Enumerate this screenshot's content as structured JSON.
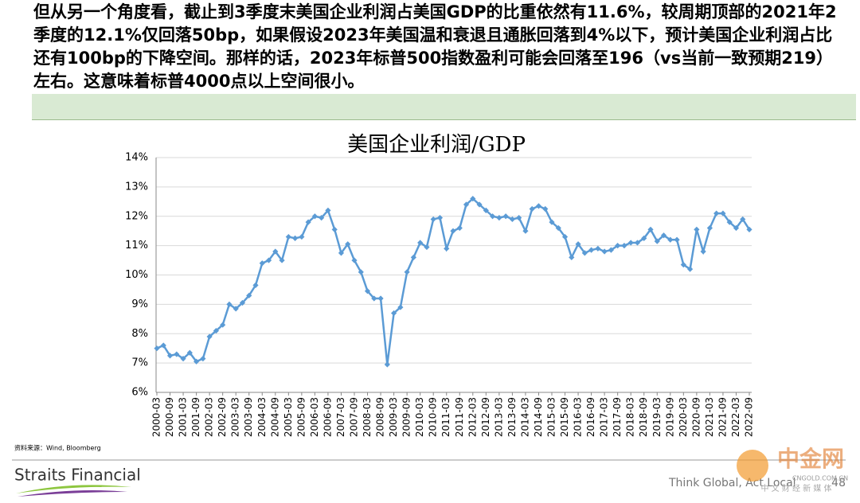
{
  "header": {
    "text": "但从另一个角度看，截止到3季度末美国企业利润占美国GDP的比重依然有11.6%，较周期顶部的2021年2季度的12.1%仅回落50bp，如果假设2023年美国温和衰退且通胀回落到4%以下，预计美国企业利润占比还有100bp的下降空间。那样的话，2023年标普500指数盈利可能会回落至196（vs当前一致预期219）左右。这意味着标普4000点以上空间很小。"
  },
  "chart_data": {
    "type": "line",
    "title": "美国企业利润/GDP",
    "categories": [
      "2000-03",
      null,
      "2000-09",
      null,
      "2001-03",
      null,
      "2001-09",
      null,
      "2002-03",
      null,
      "2002-09",
      null,
      "2003-03",
      null,
      "2003-09",
      null,
      "2004-03",
      null,
      "2004-09",
      null,
      "2005-03",
      null,
      "2005-09",
      null,
      "2006-03",
      null,
      "2006-09",
      null,
      "2007-03",
      null,
      "2007-09",
      null,
      "2008-03",
      null,
      "2008-09",
      null,
      "2009-03",
      null,
      "2009-09",
      null,
      "2010-03",
      null,
      "2010-09",
      null,
      "2011-03",
      null,
      "2011-09",
      null,
      "2012-03",
      null,
      "2012-09",
      null,
      "2013-03",
      null,
      "2013-09",
      null,
      "2014-03",
      null,
      "2014-09",
      null,
      "2015-03",
      null,
      "2015-09",
      null,
      "2016-03",
      null,
      "2016-09",
      null,
      "2017-03",
      null,
      "2017-09",
      null,
      "2018-03",
      null,
      "2018-09",
      null,
      "2019-03",
      null,
      "2019-09",
      null,
      "2020-03",
      null,
      "2020-09",
      null,
      "2021-03",
      null,
      "2021-09",
      null,
      "2022-03",
      null,
      "2022-09"
    ],
    "series": [
      {
        "color": "#5b9bd5",
        "values": [
          7.5,
          7.6,
          7.25,
          7.3,
          7.15,
          7.35,
          7.05,
          7.15,
          7.9,
          8.1,
          8.3,
          9.0,
          8.85,
          9.05,
          9.3,
          9.65,
          10.4,
          10.5,
          10.8,
          10.5,
          11.3,
          11.25,
          11.3,
          11.8,
          12.0,
          11.95,
          12.2,
          11.55,
          10.75,
          11.05,
          10.5,
          10.1,
          9.45,
          9.2,
          9.2,
          6.95,
          8.7,
          8.9,
          10.1,
          10.6,
          11.1,
          10.95,
          11.9,
          11.95,
          10.9,
          11.5,
          11.6,
          12.4,
          12.6,
          12.4,
          12.2,
          12.0,
          11.95,
          12.0,
          11.9,
          11.95,
          11.5,
          12.25,
          12.35,
          12.25,
          11.8,
          11.6,
          11.3,
          10.6,
          11.05,
          10.75,
          10.85,
          10.9,
          10.8,
          10.85,
          11.0,
          11.0,
          11.1,
          11.1,
          11.25,
          11.55,
          11.15,
          11.35,
          11.2,
          11.2,
          10.35,
          10.2,
          11.55,
          10.8,
          11.6,
          12.1,
          12.1,
          11.8,
          11.6,
          11.9,
          11.55
        ]
      }
    ],
    "ylim": [
      6,
      14
    ],
    "yticks": [
      {
        "value": 6,
        "label": "6%"
      },
      {
        "value": 7,
        "label": "7%"
      },
      {
        "value": 8,
        "label": "8%"
      },
      {
        "value": 9,
        "label": "9%"
      },
      {
        "value": 10,
        "label": "10%"
      },
      {
        "value": 11,
        "label": "11%"
      },
      {
        "value": 12,
        "label": "12%"
      },
      {
        "value": 13,
        "label": "13%"
      },
      {
        "value": 14,
        "label": "14%"
      }
    ],
    "grid": true
  },
  "source": "资料来源：Wind, Bloomberg",
  "footer": {
    "brand": "Straits Financial",
    "slogan": "Think Global, Act Local",
    "page": "48"
  },
  "watermark": {
    "name": "中金网",
    "url": "CNGOLD.COM.CN",
    "tagline": "中 文 财 经 新 媒 体"
  }
}
